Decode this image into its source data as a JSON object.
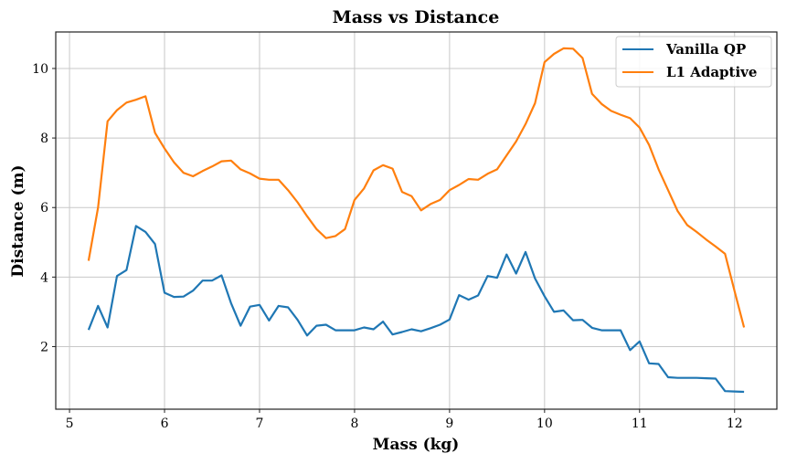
{
  "chart_data": {
    "type": "line",
    "title": "Mass vs Distance",
    "xlabel": "Mass (kg)",
    "ylabel": "Distance (m)",
    "xlim": [
      4.855,
      12.445
    ],
    "ylim": [
      0.2,
      11.05
    ],
    "xticks": [
      5,
      6,
      7,
      8,
      9,
      10,
      11,
      12
    ],
    "yticks": [
      2,
      4,
      6,
      8,
      10
    ],
    "grid": true,
    "legend_position": "top-right",
    "x": [
      5.2,
      5.3,
      5.4,
      5.5,
      5.6,
      5.7,
      5.8,
      5.9,
      6.0,
      6.1,
      6.2,
      6.3,
      6.4,
      6.5,
      6.6,
      6.7,
      6.8,
      6.9,
      7.0,
      7.1,
      7.2,
      7.3,
      7.4,
      7.5,
      7.6,
      7.7,
      7.8,
      7.9,
      8.0,
      8.1,
      8.2,
      8.3,
      8.4,
      8.5,
      8.6,
      8.7,
      8.8,
      8.9,
      9.0,
      9.1,
      9.2,
      9.3,
      9.4,
      9.5,
      9.6,
      9.7,
      9.8,
      9.9,
      10.0,
      10.1,
      10.2,
      10.3,
      10.4,
      10.5,
      10.6,
      10.7,
      10.8,
      10.9,
      11.0,
      11.1,
      11.2,
      11.3,
      11.4,
      11.5,
      11.6,
      11.7,
      11.8,
      11.9,
      12.0,
      12.1
    ],
    "series": [
      {
        "name": "Vanilla QP",
        "color": "#1f77b4",
        "values": [
          2.48,
          3.17,
          2.55,
          4.03,
          4.2,
          5.47,
          5.3,
          4.95,
          3.55,
          3.43,
          3.44,
          3.61,
          3.9,
          3.9,
          4.05,
          3.25,
          2.6,
          3.15,
          3.2,
          2.75,
          3.17,
          3.13,
          2.77,
          2.32,
          2.6,
          2.63,
          2.47,
          2.47,
          2.47,
          2.55,
          2.5,
          2.72,
          2.35,
          2.42,
          2.5,
          2.44,
          2.53,
          2.63,
          2.78,
          3.48,
          3.35,
          3.47,
          4.03,
          3.98,
          4.65,
          4.1,
          4.72,
          3.96,
          3.45,
          3.0,
          3.04,
          2.76,
          2.77,
          2.54,
          2.47,
          2.47,
          2.47,
          1.9,
          2.15,
          1.52,
          1.5,
          1.12,
          1.1,
          1.1,
          1.1,
          1.09,
          1.08,
          0.72,
          0.71,
          0.7
        ]
      },
      {
        "name": "L1 Adaptive",
        "color": "#ff7f0e",
        "values": [
          4.47,
          6.0,
          8.48,
          8.8,
          9.02,
          9.1,
          9.2,
          8.15,
          7.7,
          7.3,
          7.0,
          6.9,
          7.05,
          7.18,
          7.33,
          7.35,
          7.1,
          6.98,
          6.83,
          6.8,
          6.8,
          6.5,
          6.15,
          5.75,
          5.38,
          5.12,
          5.18,
          5.38,
          6.22,
          6.55,
          7.07,
          7.22,
          7.12,
          6.45,
          6.33,
          5.92,
          6.1,
          6.22,
          6.5,
          6.65,
          6.82,
          6.8,
          6.97,
          7.1,
          7.5,
          7.9,
          8.4,
          9.0,
          10.18,
          10.42,
          10.58,
          10.57,
          10.3,
          9.27,
          8.98,
          8.78,
          8.67,
          8.57,
          8.3,
          7.8,
          7.1,
          6.5,
          5.9,
          5.5,
          5.3,
          5.08,
          4.88,
          4.67,
          3.6,
          2.55
        ]
      }
    ]
  }
}
